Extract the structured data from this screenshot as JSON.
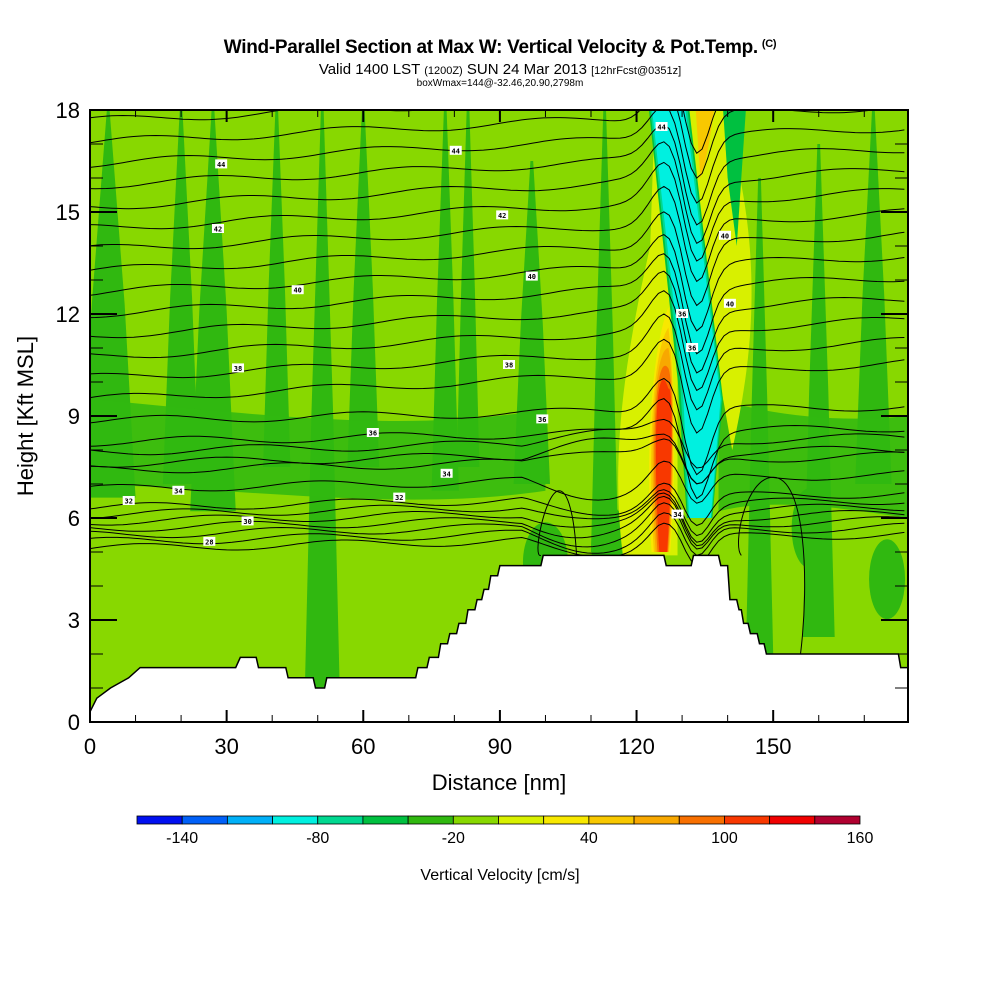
{
  "header": {
    "title": "Wind-Parallel Section at Max W: Vertical Velocity & Pot.Temp.",
    "title_mark": "(C)",
    "subtitle_a": "Valid 1400 LST",
    "subtitle_b": "(1200Z)",
    "subtitle_c": "SUN 24 Mar 2013",
    "subtitle_d": "[12hrFcst@0351z]",
    "subtitle2": "boxWmax=144@-32.46,20.90,2798m"
  },
  "chart_data": {
    "type": "contour",
    "title": "Wind-Parallel Section at Max W: Vertical Velocity & Pot.Temp.",
    "xlabel": "Distance [nm]",
    "ylabel": "Height [Kft MSL]",
    "xlim": [
      0,
      179.6
    ],
    "ylim": [
      0,
      18
    ],
    "xticks": [
      0,
      30,
      60,
      90,
      120,
      150
    ],
    "xtick_labels": [
      "0",
      "30",
      "60",
      "90",
      "120",
      "150"
    ],
    "yticks": [
      0,
      3,
      6,
      9,
      12,
      15,
      18
    ],
    "ytick_labels": [
      "0",
      "3",
      "6",
      "9",
      "12",
      "15",
      "18"
    ],
    "colorbar": {
      "title": "Vertical Velocity [cm/s]",
      "levels": [
        -160,
        -140,
        -120,
        -100,
        -80,
        -60,
        -40,
        -20,
        0,
        20,
        40,
        60,
        80,
        100,
        120,
        140,
        160
      ],
      "tick_values": [
        -140,
        -80,
        -20,
        40,
        100,
        160
      ],
      "tick_labels": [
        "-140",
        "-80",
        "-20",
        "40",
        "100",
        "160"
      ],
      "colors": [
        "#0010f0",
        "#0060f8",
        "#00b0f8",
        "#00f0e0",
        "#00d890",
        "#00c040",
        "#30b810",
        "#88d800",
        "#d8f000",
        "#f8e800",
        "#f8c800",
        "#f8a800",
        "#f87000",
        "#f83800",
        "#f00000",
        "#b00030"
      ]
    },
    "theta_contour_labels": [
      {
        "value": "44",
        "x": 28.8,
        "y": 16.4
      },
      {
        "value": "44",
        "x": 80.3,
        "y": 16.8
      },
      {
        "value": "44",
        "x": 125.5,
        "y": 17.5
      },
      {
        "value": "42",
        "x": 28.1,
        "y": 14.5
      },
      {
        "value": "42",
        "x": 90.5,
        "y": 14.9
      },
      {
        "value": "40",
        "x": 45.6,
        "y": 12.7
      },
      {
        "value": "40",
        "x": 97.0,
        "y": 13.1
      },
      {
        "value": "40",
        "x": 139.4,
        "y": 14.3
      },
      {
        "value": "40",
        "x": 140.5,
        "y": 12.3
      },
      {
        "value": "38",
        "x": 32.5,
        "y": 10.4
      },
      {
        "value": "38",
        "x": 92.0,
        "y": 10.5
      },
      {
        "value": "36",
        "x": 130.0,
        "y": 12.0
      },
      {
        "value": "36",
        "x": 132.2,
        "y": 11.0
      },
      {
        "value": "36",
        "x": 62.1,
        "y": 8.5
      },
      {
        "value": "36",
        "x": 99.3,
        "y": 8.9
      },
      {
        "value": "34",
        "x": 19.4,
        "y": 6.8
      },
      {
        "value": "34",
        "x": 78.3,
        "y": 7.3
      },
      {
        "value": "34",
        "x": 129.0,
        "y": 6.1
      },
      {
        "value": "32",
        "x": 8.5,
        "y": 6.5
      },
      {
        "value": "32",
        "x": 67.9,
        "y": 6.6
      },
      {
        "value": "30",
        "x": 34.6,
        "y": 5.9
      },
      {
        "value": "28",
        "x": 26.2,
        "y": 5.3
      }
    ],
    "terrain_kft": [
      [
        0,
        0.3
      ],
      [
        1.5,
        0.7
      ],
      [
        4.5,
        1.0
      ],
      [
        8.5,
        1.3
      ],
      [
        11,
        1.6
      ],
      [
        32,
        1.6
      ],
      [
        33,
        1.9
      ],
      [
        36.5,
        1.9
      ],
      [
        37,
        1.6
      ],
      [
        43,
        1.6
      ],
      [
        43.5,
        1.3
      ],
      [
        49,
        1.3
      ],
      [
        49.5,
        1.0
      ],
      [
        51.5,
        1.0
      ],
      [
        52,
        1.3
      ],
      [
        71.5,
        1.3
      ],
      [
        72,
        1.6
      ],
      [
        74,
        1.6
      ],
      [
        74.5,
        1.9
      ],
      [
        76.5,
        1.9
      ],
      [
        77,
        2.3
      ],
      [
        78.5,
        2.3
      ],
      [
        79,
        2.6
      ],
      [
        80.5,
        2.6
      ],
      [
        81,
        2.9
      ],
      [
        82.5,
        2.9
      ],
      [
        83,
        3.3
      ],
      [
        84.5,
        3.3
      ],
      [
        85,
        3.6
      ],
      [
        86,
        3.6
      ],
      [
        86.5,
        3.9
      ],
      [
        87.5,
        3.9
      ],
      [
        88,
        4.3
      ],
      [
        89.5,
        4.3
      ],
      [
        90,
        4.6
      ],
      [
        99,
        4.6
      ],
      [
        99.5,
        4.9
      ],
      [
        126,
        4.9
      ],
      [
        126.5,
        4.6
      ],
      [
        132,
        4.6
      ],
      [
        132.5,
        4.9
      ],
      [
        138,
        4.9
      ],
      [
        138.5,
        4.6
      ],
      [
        140,
        4.6
      ],
      [
        140.5,
        3.6
      ],
      [
        142,
        3.6
      ],
      [
        142.5,
        3.3
      ],
      [
        143,
        3.3
      ],
      [
        143.5,
        2.9
      ],
      [
        144.5,
        2.9
      ],
      [
        145,
        2.6
      ],
      [
        146.5,
        2.6
      ],
      [
        147,
        2.3
      ],
      [
        148,
        2.3
      ],
      [
        148.5,
        2.0
      ],
      [
        177.5,
        2.0
      ],
      [
        178,
        1.6
      ],
      [
        179.6,
        1.6
      ]
    ]
  }
}
